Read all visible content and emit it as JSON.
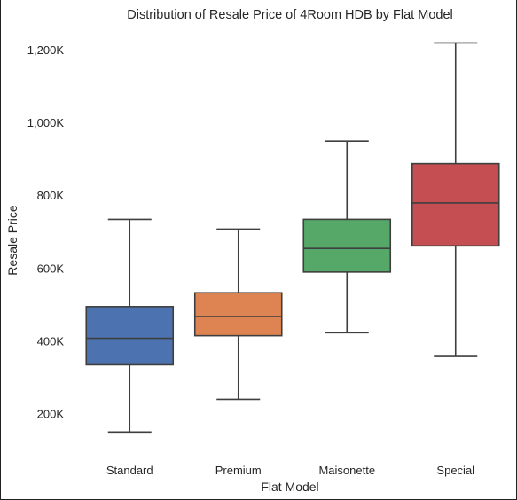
{
  "chart_data": {
    "type": "box",
    "title": "Distribution of Resale Price of 4Room HDB by Flat Model",
    "xlabel": "Flat Model",
    "ylabel": "Resale Price",
    "categories": [
      "Standard",
      "Premium",
      "Maisonette",
      "Special"
    ],
    "boxes": [
      {
        "name": "Standard",
        "whisker_low": 150000,
        "q1": 335000,
        "median": 408000,
        "q3": 495000,
        "whisker_high": 735000,
        "color": "#4c72b0"
      },
      {
        "name": "Premium",
        "whisker_low": 240000,
        "q1": 415000,
        "median": 468000,
        "q3": 533000,
        "whisker_high": 708000,
        "color": "#dd8452"
      },
      {
        "name": "Maisonette",
        "whisker_low": 423000,
        "q1": 590000,
        "median": 655000,
        "q3": 735000,
        "whisker_high": 950000,
        "color": "#55a868"
      },
      {
        "name": "Special",
        "whisker_low": 358000,
        "q1": 662000,
        "median": 780000,
        "q3": 888000,
        "whisker_high": 1220000,
        "color": "#c44e52"
      }
    ],
    "yticks": [
      {
        "value": 200000,
        "label": "200K"
      },
      {
        "value": 400000,
        "label": "400K"
      },
      {
        "value": 600000,
        "label": "600K"
      },
      {
        "value": 800000,
        "label": "800K"
      },
      {
        "value": 1000000,
        "label": "1,000K"
      },
      {
        "value": 1200000,
        "label": "1,200K"
      }
    ],
    "ylim": [
      85000,
      1265000
    ],
    "grid": false,
    "legend": "none",
    "colors": {
      "text": "#262626",
      "line": "#3f3f3f"
    }
  }
}
